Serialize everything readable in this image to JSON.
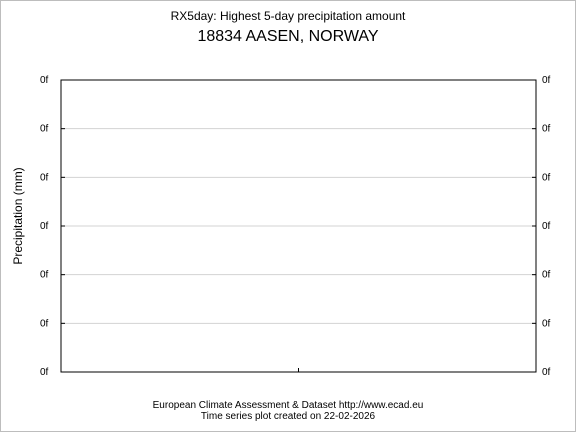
{
  "chart_data": {
    "type": "line",
    "title": "RX5day: Highest 5-day precipitation amount",
    "subtitle": "18834 AASEN, NORWAY",
    "ylabel": "Precipitation (mm)",
    "xlabel": "",
    "y_tick_labels": [
      "0f",
      "0f",
      "0f",
      "0f",
      "0f",
      "0f",
      "0f"
    ],
    "grid": true,
    "series": []
  },
  "footer": {
    "source": "European Climate Assessment & Dataset  http://www.ecad.eu",
    "created": "Time series plot created on 22-02-2026"
  },
  "colors": {
    "gridline": "#d3d3d3",
    "axis": "#000000",
    "frame": "#bdbdbd"
  }
}
